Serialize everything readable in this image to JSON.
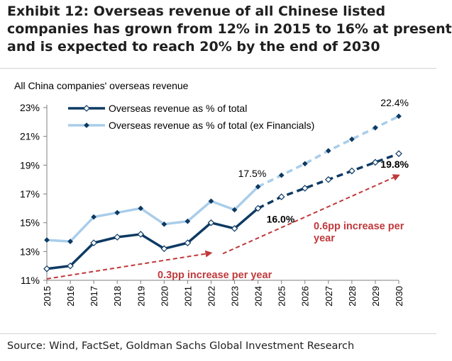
{
  "exhibit": {
    "title_lines": [
      "Exhibit 12: Overseas revenue of all Chinese listed",
      "companies has grown from 12% in 2015 to 16% at present",
      "and is expected to reach 20% by the end of 2030"
    ]
  },
  "source": "Source: Wind, FactSet, Goldman Sachs Global Investment Research",
  "colors": {
    "dark_series": "#0d3a63",
    "light_series": "#a9cdea",
    "light_marker": "#0d3a63",
    "trend": "#c0393b",
    "axis": "#7f7f7f"
  },
  "chart_data": {
    "type": "line",
    "subtitle": "All China companies' overseas revenue",
    "categories": [
      "2015",
      "2016",
      "2017",
      "2018",
      "2019",
      "2020",
      "2021",
      "2022",
      "2023",
      "2024",
      "2025",
      "2026",
      "2027",
      "2028",
      "2029",
      "2030"
    ],
    "ylim": [
      11,
      23
    ],
    "y_ticks": [
      11,
      13,
      15,
      17,
      19,
      21,
      23
    ],
    "y_tick_labels": [
      "11%",
      "13%",
      "15%",
      "17%",
      "19%",
      "21%",
      "23%"
    ],
    "forecast_start": "2024",
    "legend_position": "top-left",
    "series": [
      {
        "name": "Overseas revenue as % of total",
        "values": [
          11.8,
          12.0,
          13.6,
          14.0,
          14.2,
          13.2,
          13.6,
          15.0,
          14.6,
          16.0,
          16.8,
          17.4,
          18.0,
          18.6,
          19.2,
          19.8
        ]
      },
      {
        "name": "Overseas revenue as % of total (ex Financials)",
        "values": [
          13.8,
          13.7,
          15.4,
          15.7,
          16.0,
          14.9,
          15.1,
          16.5,
          15.9,
          17.5,
          18.3,
          19.1,
          20.0,
          20.8,
          21.6,
          22.4
        ]
      }
    ],
    "data_labels": [
      {
        "series": 0,
        "category": "2024",
        "text": "16.0%",
        "bold": true
      },
      {
        "series": 0,
        "category": "2030",
        "text": "19.8%",
        "bold": true
      },
      {
        "series": 1,
        "category": "2024",
        "text": "17.5%",
        "bold": false
      },
      {
        "series": 1,
        "category": "2030",
        "text": "22.4%",
        "bold": false
      }
    ],
    "trend_arrows": [
      {
        "from": [
          "2015",
          11.1
        ],
        "to": [
          "2022",
          12.9
        ],
        "label": "0.3pp increase per year"
      },
      {
        "from": [
          "2022.5",
          12.85
        ],
        "to": [
          "2030",
          18.3
        ],
        "label_lines": [
          "0.6pp increase per",
          "year"
        ]
      }
    ]
  }
}
